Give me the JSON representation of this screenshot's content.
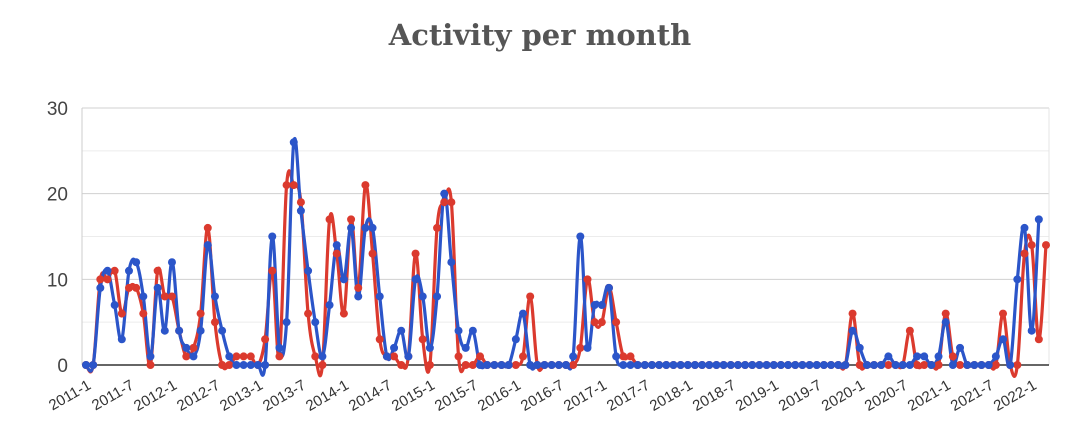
{
  "chart_data": {
    "type": "line",
    "title": "Activity per month",
    "xlabel": "",
    "ylabel": "",
    "ylim": [
      0,
      30
    ],
    "yticks": [
      "0",
      "10",
      "20",
      "30"
    ],
    "grid": true,
    "legend": "none",
    "xtick_labels": [
      "2011-1",
      "2011-7",
      "2012-1",
      "2012-7",
      "2013-1",
      "2013-7",
      "2014-1",
      "2014-7",
      "2015-1",
      "2015-7",
      "2016-1",
      "2016-7",
      "2017-1",
      "2017-7",
      "2018-1",
      "2018-7",
      "2019-1",
      "2019-7",
      "2020-1",
      "2020-7",
      "2021-1",
      "2021-7",
      "2022-1"
    ],
    "x_start": "2011-1",
    "series": [
      {
        "color": "#db3a2e",
        "values": [
          0,
          0,
          10,
          10,
          11,
          6,
          9,
          9,
          6,
          0,
          11,
          8,
          8,
          4,
          1,
          2,
          6,
          16,
          5,
          0,
          0,
          1,
          1,
          1,
          0,
          3,
          11,
          1,
          21,
          21,
          19,
          6,
          1,
          0,
          17,
          13,
          6,
          17,
          9,
          21,
          13,
          3,
          1,
          1,
          0,
          1,
          13,
          3,
          0,
          16,
          19,
          19,
          1,
          0,
          0,
          1,
          0,
          0,
          0,
          0,
          0,
          1,
          8,
          0,
          0,
          0,
          0,
          0,
          0,
          2,
          10,
          5,
          5,
          9,
          5,
          1,
          1,
          0,
          0,
          0,
          0,
          0,
          0,
          0,
          0,
          0,
          0,
          0,
          0,
          0,
          0,
          0,
          0,
          0,
          0,
          0,
          0,
          0,
          0,
          0,
          0,
          0,
          0,
          0,
          0,
          0,
          0,
          6,
          0,
          0,
          0,
          0,
          0,
          0,
          0,
          4,
          0,
          0,
          0,
          0,
          6,
          1,
          0,
          0,
          0,
          0,
          0,
          0,
          6,
          0,
          0,
          13,
          14,
          3,
          14
        ]
      },
      {
        "color": "#2b55c9",
        "values": [
          0,
          0,
          9,
          11,
          7,
          3,
          11,
          12,
          8,
          1,
          9,
          4,
          12,
          4,
          2,
          1,
          4,
          14,
          8,
          4,
          1,
          0,
          0,
          0,
          0,
          0,
          15,
          2,
          5,
          26,
          18,
          11,
          5,
          1,
          7,
          14,
          10,
          16,
          8,
          16,
          16,
          8,
          1,
          2,
          4,
          1,
          10,
          8,
          2,
          8,
          20,
          12,
          4,
          2,
          4,
          0,
          0,
          0,
          0,
          0,
          3,
          6,
          0,
          0,
          0,
          0,
          0,
          0,
          1,
          15,
          2,
          7,
          7,
          9,
          1,
          0,
          0,
          0,
          0,
          0,
          0,
          0,
          0,
          0,
          0,
          0,
          0,
          0,
          0,
          0,
          0,
          0,
          0,
          0,
          0,
          0,
          0,
          0,
          0,
          0,
          0,
          0,
          0,
          0,
          0,
          0,
          0,
          4,
          2,
          0,
          0,
          0,
          1,
          0,
          0,
          0,
          1,
          1,
          0,
          1,
          5,
          0,
          2,
          0,
          0,
          0,
          0,
          1,
          3,
          0,
          10,
          16,
          4,
          17
        ]
      }
    ]
  }
}
